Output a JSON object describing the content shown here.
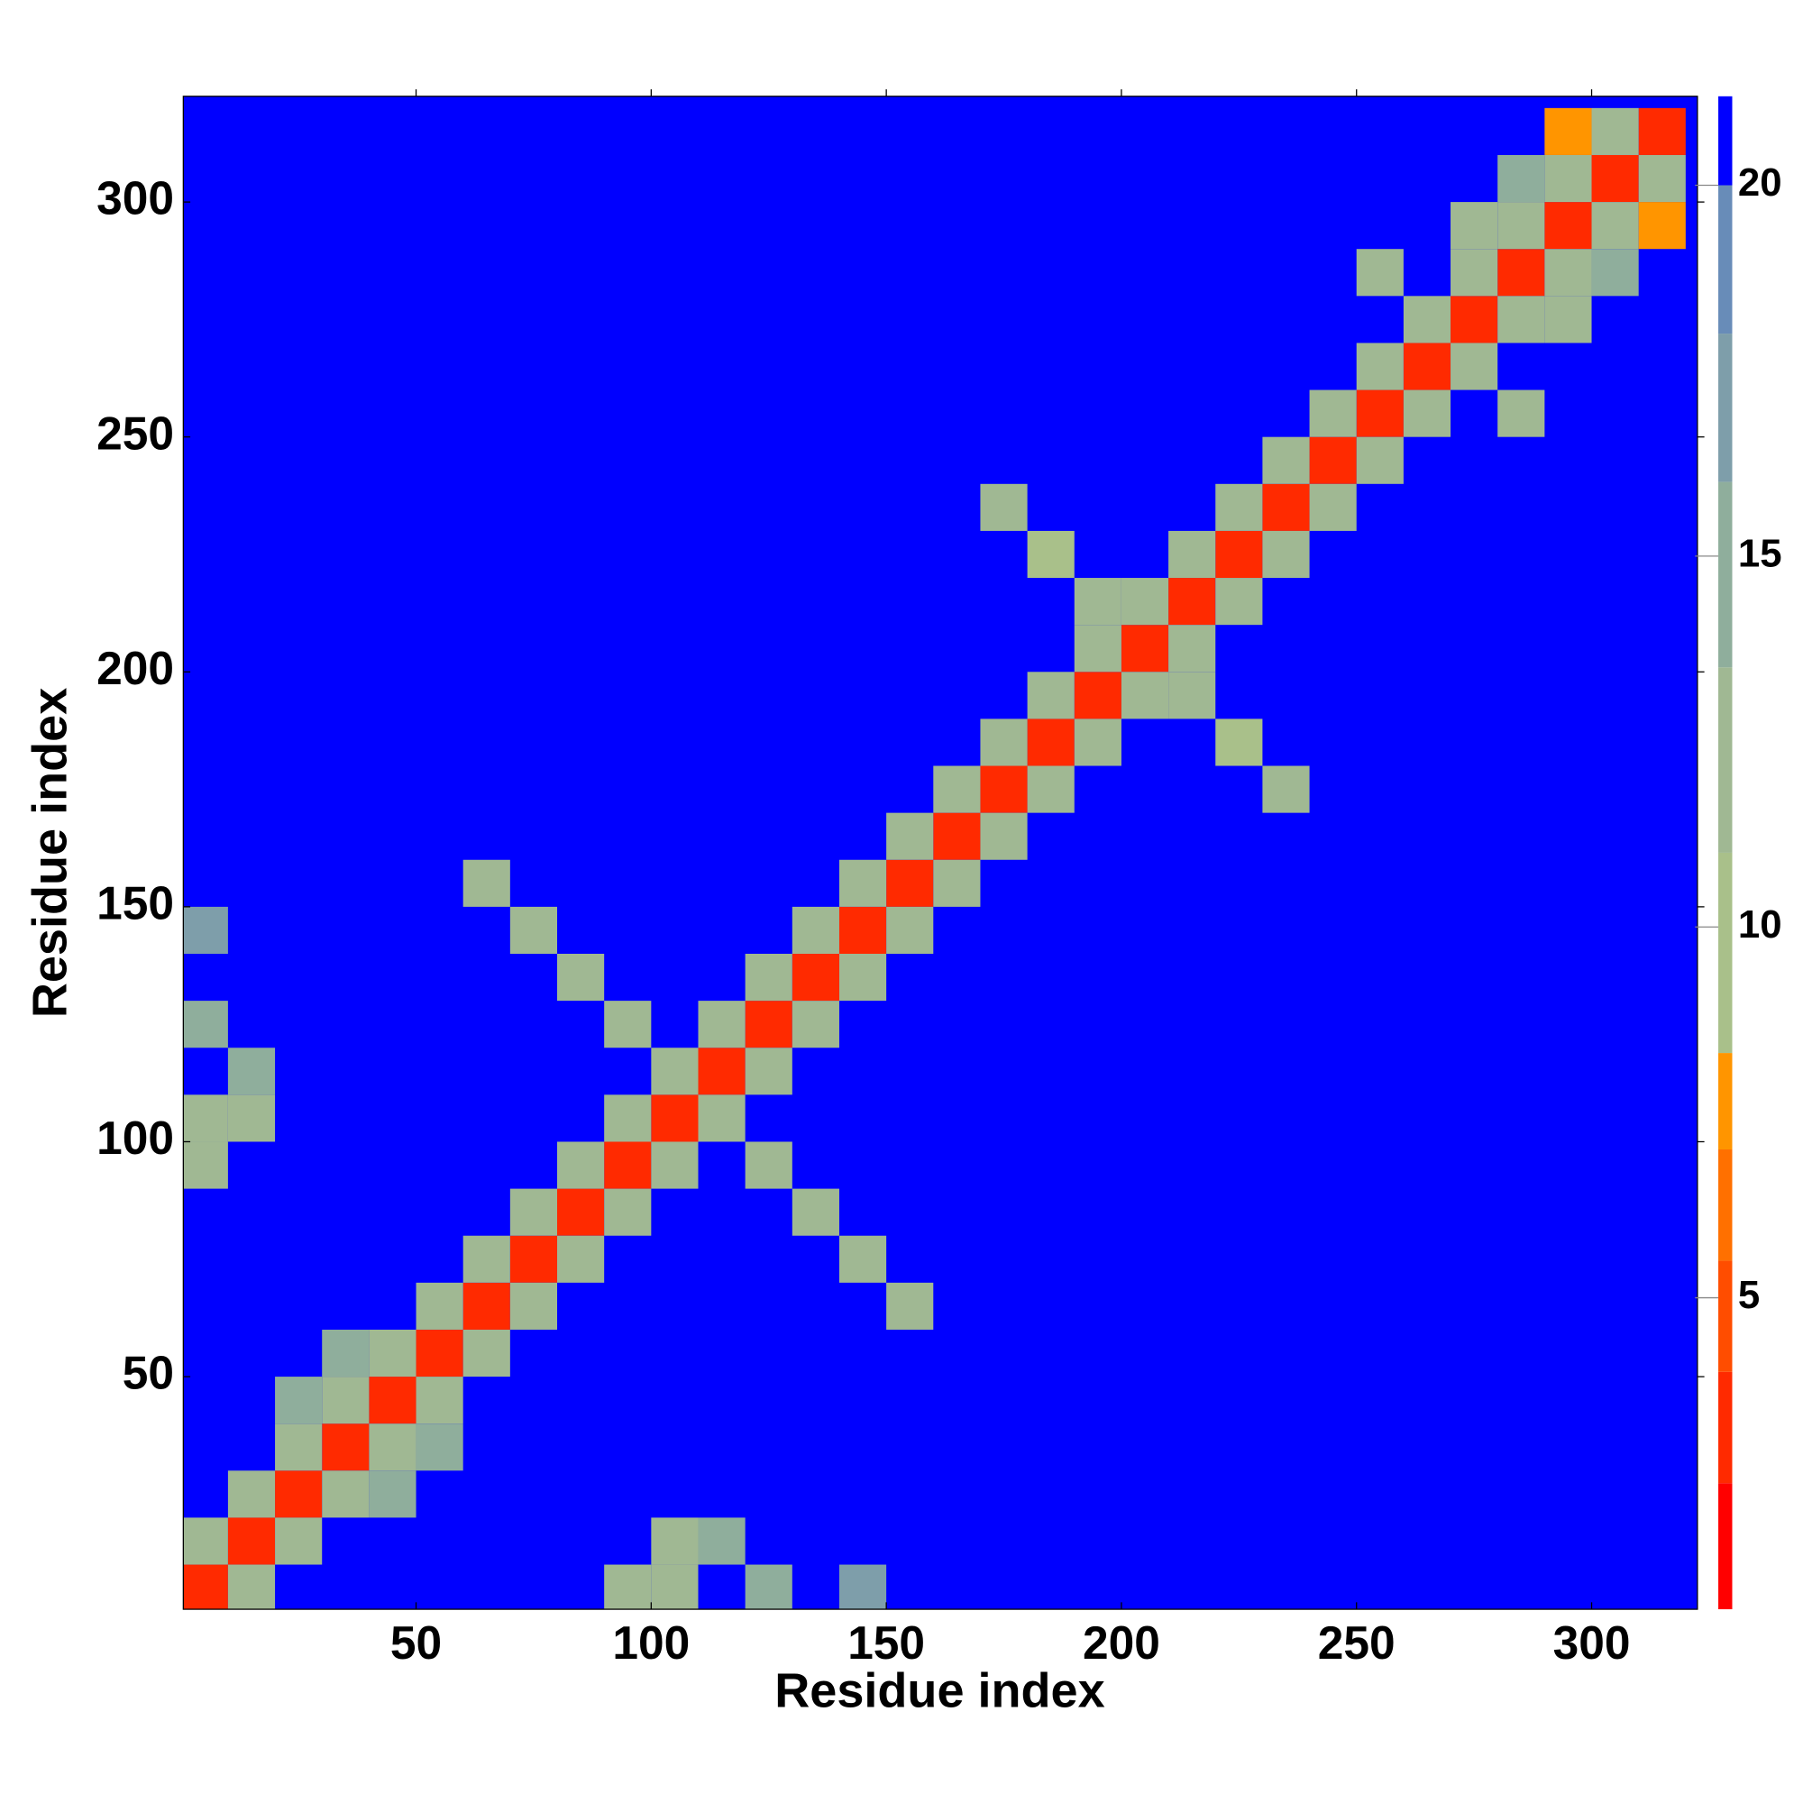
{
  "chart_data": {
    "type": "heatmap",
    "x_label": "Residue index",
    "y_label": "Residue index",
    "xlim": [
      0.5,
      322.5
    ],
    "ylim": [
      0.5,
      322.5
    ],
    "xticks": [
      50,
      100,
      150,
      200,
      250,
      300
    ],
    "yticks": [
      50,
      100,
      150,
      200,
      250,
      300
    ],
    "clim": [
      0.8,
      21.2
    ],
    "cticks": [
      5,
      10,
      15,
      20
    ],
    "background_color": "#0000ff",
    "colorscale": [
      [
        0.8,
        "#ff0000"
      ],
      [
        2.5,
        "#ff2a00"
      ],
      [
        4.0,
        "#ff4d00"
      ],
      [
        5.5,
        "#ff7000"
      ],
      [
        7.0,
        "#ff9500"
      ],
      [
        8.3,
        "#a9c08a"
      ],
      [
        11.0,
        "#a0b893"
      ],
      [
        13.5,
        "#8fae9c"
      ],
      [
        16.0,
        "#7e9eaa"
      ],
      [
        18.0,
        "#688cb8"
      ],
      [
        20.0,
        "#0000ff"
      ]
    ],
    "x": [
      5,
      15,
      25,
      35,
      45,
      55,
      65,
      75,
      85,
      95,
      105,
      115,
      125,
      135,
      145,
      155,
      165,
      175,
      185,
      195,
      205,
      215,
      225,
      235,
      245,
      255,
      265,
      275,
      285,
      295,
      305,
      315,
      5,
      15,
      25,
      35,
      45,
      55,
      65,
      75,
      85,
      95,
      105,
      115,
      125,
      135,
      145,
      155,
      165,
      175,
      185,
      195,
      205,
      215,
      225,
      235,
      245,
      255,
      265,
      275,
      285,
      295,
      305,
      15,
      25,
      35,
      45,
      55,
      65,
      75,
      85,
      95,
      105,
      115,
      125,
      135,
      145,
      155,
      165,
      175,
      185,
      195,
      205,
      215,
      225,
      235,
      245,
      255,
      265,
      275,
      285,
      295,
      305,
      315,
      65,
      155,
      75,
      145,
      85,
      135,
      95,
      125,
      175,
      235,
      185,
      225,
      195,
      215,
      295,
      315,
      285,
      255,
      275,
      295,
      305,
      285,
      5,
      105,
      15,
      105,
      5,
      95,
      15,
      115,
      5,
      145,
      5,
      125,
      35,
      55,
      25,
      45
    ],
    "y": [
      5,
      15,
      25,
      35,
      45,
      55,
      65,
      75,
      85,
      95,
      105,
      115,
      125,
      135,
      145,
      155,
      165,
      175,
      185,
      195,
      205,
      215,
      225,
      235,
      245,
      255,
      265,
      275,
      285,
      295,
      305,
      315,
      15,
      25,
      35,
      45,
      55,
      65,
      75,
      85,
      95,
      105,
      115,
      125,
      135,
      145,
      155,
      165,
      175,
      185,
      195,
      205,
      215,
      225,
      235,
      245,
      255,
      265,
      275,
      285,
      295,
      305,
      315,
      5,
      15,
      25,
      35,
      45,
      55,
      65,
      75,
      85,
      95,
      105,
      115,
      125,
      135,
      145,
      155,
      165,
      175,
      185,
      195,
      205,
      215,
      225,
      235,
      245,
      255,
      265,
      275,
      285,
      295,
      305,
      155,
      65,
      145,
      75,
      135,
      85,
      125,
      95,
      235,
      175,
      225,
      185,
      215,
      195,
      315,
      295,
      255,
      285,
      295,
      275,
      285,
      305,
      105,
      5,
      105,
      15,
      95,
      5,
      115,
      15,
      145,
      5,
      125,
      5,
      55,
      35,
      45,
      25
    ],
    "values": [
      3,
      3,
      3,
      3,
      3,
      3,
      3,
      3,
      3,
      3,
      3,
      3,
      3,
      3,
      3,
      3,
      3,
      3,
      3,
      3,
      3,
      3,
      3,
      3,
      3,
      3,
      3,
      3,
      3,
      3,
      3,
      3,
      12,
      12,
      12,
      12,
      12,
      12,
      12,
      12,
      12,
      12,
      12,
      12,
      12,
      12,
      12,
      12,
      12,
      12,
      12,
      12,
      12,
      12,
      12,
      12,
      12,
      12,
      12,
      12,
      12,
      12,
      12,
      12,
      12,
      12,
      12,
      12,
      12,
      12,
      12,
      12,
      12,
      12,
      12,
      12,
      12,
      12,
      12,
      12,
      12,
      12,
      12,
      12,
      12,
      12,
      12,
      12,
      12,
      12,
      12,
      12,
      12,
      12,
      12,
      12,
      11,
      11,
      11,
      11,
      11,
      11,
      11,
      11,
      10,
      10,
      12,
      12,
      7,
      7,
      11,
      11,
      13,
      13,
      14,
      14,
      11,
      11,
      12,
      12,
      12,
      12,
      14,
      14,
      16,
      16,
      15,
      15,
      14,
      14,
      15,
      15
    ]
  }
}
